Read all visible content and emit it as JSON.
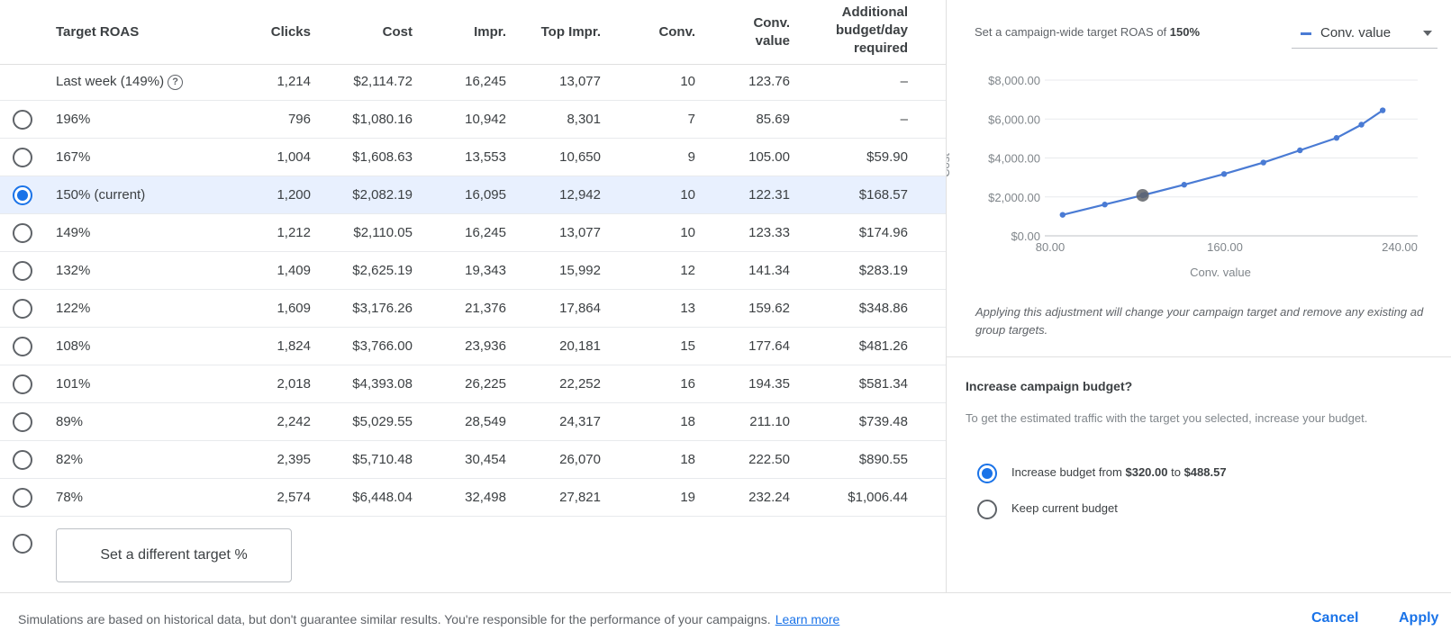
{
  "table": {
    "headers": {
      "target_roas": "Target ROAS",
      "clicks": "Clicks",
      "cost": "Cost",
      "impr": "Impr.",
      "top_impr": "Top Impr.",
      "conv": "Conv.",
      "conv_value_1": "Conv.",
      "conv_value_2": "value",
      "budget_1": "Additional",
      "budget_2": "budget/day",
      "budget_3": "required"
    },
    "last_week": {
      "label": "Last week (149%)",
      "help_icon": "?",
      "clicks": "1,214",
      "cost": "$2,114.72",
      "impr": "16,245",
      "top_impr": "13,077",
      "conv": "10",
      "conv_value": "123.76",
      "budget": "–"
    },
    "rows": [
      {
        "target": "196%",
        "clicks": "796",
        "cost": "$1,080.16",
        "impr": "10,942",
        "top_impr": "8,301",
        "conv": "7",
        "conv_value": "85.69",
        "budget": "–",
        "selected": false
      },
      {
        "target": "167%",
        "clicks": "1,004",
        "cost": "$1,608.63",
        "impr": "13,553",
        "top_impr": "10,650",
        "conv": "9",
        "conv_value": "105.00",
        "budget": "$59.90",
        "selected": false
      },
      {
        "target": "150% (current)",
        "clicks": "1,200",
        "cost": "$2,082.19",
        "impr": "16,095",
        "top_impr": "12,942",
        "conv": "10",
        "conv_value": "122.31",
        "budget": "$168.57",
        "selected": true
      },
      {
        "target": "149%",
        "clicks": "1,212",
        "cost": "$2,110.05",
        "impr": "16,245",
        "top_impr": "13,077",
        "conv": "10",
        "conv_value": "123.33",
        "budget": "$174.96",
        "selected": false
      },
      {
        "target": "132%",
        "clicks": "1,409",
        "cost": "$2,625.19",
        "impr": "19,343",
        "top_impr": "15,992",
        "conv": "12",
        "conv_value": "141.34",
        "budget": "$283.19",
        "selected": false
      },
      {
        "target": "122%",
        "clicks": "1,609",
        "cost": "$3,176.26",
        "impr": "21,376",
        "top_impr": "17,864",
        "conv": "13",
        "conv_value": "159.62",
        "budget": "$348.86",
        "selected": false
      },
      {
        "target": "108%",
        "clicks": "1,824",
        "cost": "$3,766.00",
        "impr": "23,936",
        "top_impr": "20,181",
        "conv": "15",
        "conv_value": "177.64",
        "budget": "$481.26",
        "selected": false
      },
      {
        "target": "101%",
        "clicks": "2,018",
        "cost": "$4,393.08",
        "impr": "26,225",
        "top_impr": "22,252",
        "conv": "16",
        "conv_value": "194.35",
        "budget": "$581.34",
        "selected": false
      },
      {
        "target": "89%",
        "clicks": "2,242",
        "cost": "$5,029.55",
        "impr": "28,549",
        "top_impr": "24,317",
        "conv": "18",
        "conv_value": "211.10",
        "budget": "$739.48",
        "selected": false
      },
      {
        "target": "82%",
        "clicks": "2,395",
        "cost": "$5,710.48",
        "impr": "30,454",
        "top_impr": "26,070",
        "conv": "18",
        "conv_value": "222.50",
        "budget": "$890.55",
        "selected": false
      },
      {
        "target": "78%",
        "clicks": "2,574",
        "cost": "$6,448.04",
        "impr": "32,498",
        "top_impr": "27,821",
        "conv": "19",
        "conv_value": "232.24",
        "budget": "$1,006.44",
        "selected": false
      }
    ],
    "custom_target_label": "Set a different target %"
  },
  "chart_panel": {
    "heading_prefix": "Set a campaign-wide target ROAS of",
    "heading_value": "150%",
    "series_select": "Conv. value",
    "note": "Applying this adjustment will change your campaign target and remove any existing ad group targets."
  },
  "chart_data": {
    "type": "line",
    "xlabel": "Conv. value",
    "ylabel": "Cost",
    "xlim": [
      80,
      240
    ],
    "ylim": [
      0,
      8000
    ],
    "x_ticks": [
      "80.00",
      "160.00",
      "240.00"
    ],
    "y_ticks": [
      "$0.00",
      "$2,000.00",
      "$4,000.00",
      "$6,000.00",
      "$8,000.00"
    ],
    "x_tick_values": [
      80,
      160,
      240
    ],
    "y_tick_values": [
      0,
      2000,
      4000,
      6000,
      8000
    ],
    "series": [
      {
        "x": [
          85.69,
          105.0,
          122.31,
          123.33,
          141.34,
          159.62,
          177.64,
          194.35,
          211.1,
          222.5,
          232.24
        ],
        "y": [
          1080.16,
          1608.63,
          2082.19,
          2110.05,
          2625.19,
          3176.26,
          3766.0,
          4393.08,
          5029.55,
          5710.48,
          6448.04
        ]
      }
    ],
    "highlight_x": 122.31,
    "highlight_y": 2082.19,
    "grid": true,
    "colors": {
      "line": "#4a7bd4",
      "highlight": "#5f6368",
      "grid": "#e8eaed",
      "axis_text": "#80868b"
    }
  },
  "budget": {
    "title": "Increase campaign budget?",
    "description": "To get the estimated traffic with the target you selected, increase your budget.",
    "option_increase_prefix": "Increase budget from",
    "option_increase_from": "$320.00",
    "option_increase_mid": "to",
    "option_increase_to": "$488.57",
    "option_keep": "Keep current budget"
  },
  "footer": {
    "disclaimer": "Simulations are based on historical data, but don't guarantee similar results. You're responsible for the performance of your campaigns.",
    "learn_more": "Learn more",
    "cancel": "Cancel",
    "apply": "Apply"
  },
  "colors": {
    "accent": "#1a73e8",
    "selected_row": "#e8f0fe"
  }
}
